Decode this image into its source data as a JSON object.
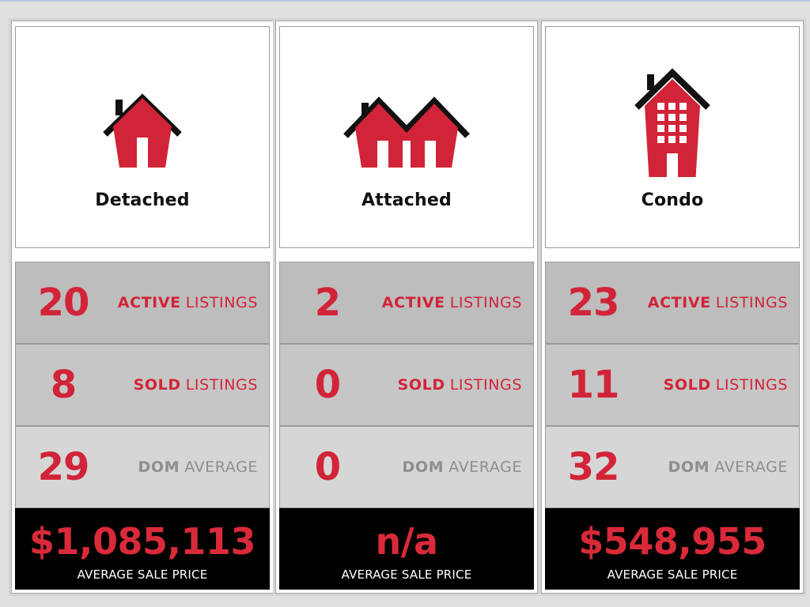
{
  "colors": {
    "accent_red": "#d22438",
    "background": "#e0e0e0",
    "price_bg": "#000000"
  },
  "columns": [
    {
      "name": "Detached",
      "icon": "detached-house-icon",
      "active": {
        "value": "20",
        "strong": "ACTIVE",
        "rest": "LISTINGS"
      },
      "sold": {
        "value": "8",
        "strong": "SOLD",
        "rest": "LISTINGS"
      },
      "dom": {
        "value": "29",
        "strong": "DOM",
        "rest": "AVERAGE"
      },
      "price": {
        "value": "$1,085,113",
        "caption": "AVERAGE SALE PRICE"
      }
    },
    {
      "name": "Attached",
      "icon": "attached-house-icon",
      "active": {
        "value": "2",
        "strong": "ACTIVE",
        "rest": "LISTINGS"
      },
      "sold": {
        "value": "0",
        "strong": "SOLD",
        "rest": "LISTINGS"
      },
      "dom": {
        "value": "0",
        "strong": "DOM",
        "rest": "AVERAGE"
      },
      "price": {
        "value": "n/a",
        "caption": "AVERAGE SALE PRICE"
      }
    },
    {
      "name": "Condo",
      "icon": "condo-building-icon",
      "active": {
        "value": "23",
        "strong": "ACTIVE",
        "rest": "LISTINGS"
      },
      "sold": {
        "value": "11",
        "strong": "SOLD",
        "rest": "LISTINGS"
      },
      "dom": {
        "value": "32",
        "strong": "DOM",
        "rest": "AVERAGE"
      },
      "price": {
        "value": "$548,955",
        "caption": "AVERAGE SALE PRICE"
      }
    }
  ]
}
